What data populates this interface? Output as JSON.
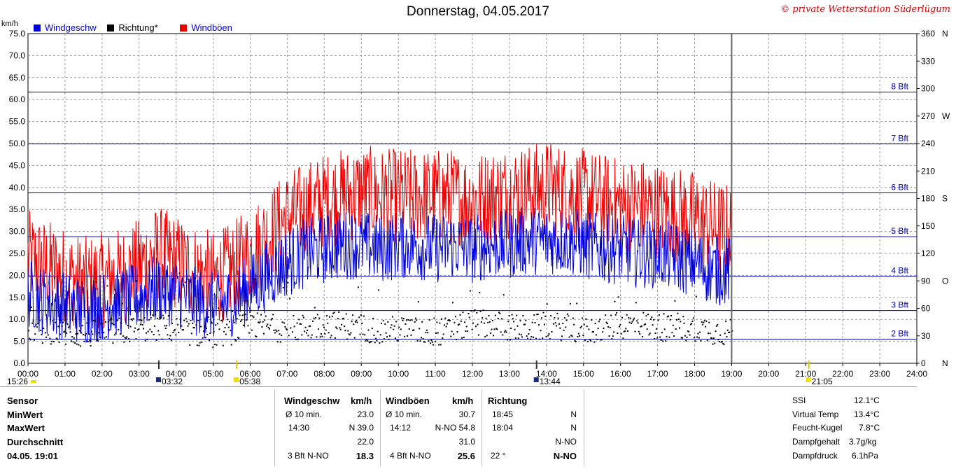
{
  "title": "Donnerstag, 04.05.2017",
  "copyright": "© private Wetterstation Süderlügum",
  "legend": {
    "wind": "Windgeschw",
    "dir": "Richtung*",
    "gust": "Windböen"
  },
  "colors": {
    "wind": "#0000dd",
    "gust": "#ee0000",
    "dir": "#000000",
    "bft": "#0000aa"
  },
  "chart_data": {
    "type": "line",
    "ylabel": "km/h",
    "ylim": [
      0,
      75
    ],
    "y2lim": [
      0,
      360
    ],
    "y_ticks": [
      "0.0",
      "5.0",
      "10.0",
      "15.0",
      "20.0",
      "25.0",
      "30.0",
      "35.0",
      "40.0",
      "45.0",
      "50.0",
      "55.0",
      "60.0",
      "65.0",
      "70.0",
      "75.0"
    ],
    "y2_ticks": [
      "0",
      "30",
      "60",
      "90",
      "120",
      "150",
      "180",
      "210",
      "240",
      "270",
      "300",
      "330",
      "360"
    ],
    "y2_directions": [
      {
        "deg": 0,
        "label": "N"
      },
      {
        "deg": 90,
        "label": "O"
      },
      {
        "deg": 180,
        "label": "S"
      },
      {
        "deg": 270,
        "label": "W"
      },
      {
        "deg": 360,
        "label": "N"
      }
    ],
    "x_ticks": [
      "00:00",
      "01:00",
      "02:00",
      "03:00",
      "04:00",
      "05:00",
      "06:00",
      "07:00",
      "08:00",
      "09:00",
      "10:00",
      "11:00",
      "12:00",
      "13:00",
      "14:00",
      "15:00",
      "16:00",
      "17:00",
      "18:00",
      "19:00",
      "20:00",
      "21:00",
      "22:00",
      "23:00",
      "24:00"
    ],
    "bft_lines": [
      {
        "label": "2 Bft",
        "value": 5.5
      },
      {
        "label": "3 Bft",
        "value": 12.0
      },
      {
        "label": "4 Bft",
        "value": 19.8
      },
      {
        "label": "5 Bft",
        "value": 28.8
      },
      {
        "label": "6 Bft",
        "value": 38.8
      },
      {
        "label": "7 Bft",
        "value": 49.9
      },
      {
        "label": "8 Bft",
        "value": 61.7
      }
    ],
    "data_end_hour": 19.0,
    "series": [
      {
        "name": "Windböen",
        "hours": [
          0,
          0.5,
          1,
          1.5,
          2,
          2.5,
          3,
          3.5,
          4,
          4.5,
          5,
          5.5,
          6,
          6.5,
          7,
          7.5,
          8,
          8.5,
          9,
          9.5,
          10,
          10.5,
          11,
          11.5,
          12,
          12.5,
          13,
          13.5,
          14,
          14.5,
          15,
          15.5,
          16,
          16.5,
          17,
          17.5,
          18,
          18.5,
          19
        ],
        "values": [
          24,
          22,
          20,
          18,
          19,
          20,
          22,
          25,
          23,
          21,
          19,
          21,
          25,
          29,
          33,
          35,
          37,
          38,
          39,
          38,
          38,
          38,
          38,
          38,
          37,
          38,
          39,
          39,
          40,
          39,
          38,
          37,
          36,
          36,
          35,
          34,
          33,
          31,
          30
        ]
      },
      {
        "name": "Windgeschw",
        "hours": [
          0,
          0.5,
          1,
          1.5,
          2,
          2.5,
          3,
          3.5,
          4,
          4.5,
          5,
          5.5,
          6,
          6.5,
          7,
          7.5,
          8,
          8.5,
          9,
          9.5,
          10,
          10.5,
          11,
          11.5,
          12,
          12.5,
          13,
          13.5,
          14,
          14.5,
          15,
          15.5,
          16,
          16.5,
          17,
          17.5,
          18,
          18.5,
          19
        ],
        "values": [
          16,
          14,
          13,
          12,
          13,
          14,
          15,
          17,
          16,
          14,
          13,
          14,
          17,
          20,
          23,
          25,
          26,
          27,
          27,
          26,
          27,
          27,
          26,
          27,
          26,
          27,
          27,
          28,
          28,
          28,
          27,
          26,
          26,
          25,
          25,
          24,
          23,
          21,
          21
        ]
      },
      {
        "name": "Richtung*",
        "unit": "deg",
        "hours": [
          0,
          0.5,
          1,
          1.5,
          2,
          2.5,
          3,
          3.5,
          4,
          4.5,
          5,
          5.5,
          6,
          6.5,
          7,
          7.5,
          8,
          8.5,
          9,
          9.5,
          10,
          10.5,
          11,
          11.5,
          12,
          12.5,
          13,
          13.5,
          14,
          14.5,
          15,
          15.5,
          16,
          16.5,
          17,
          17.5,
          18,
          18.5,
          19
        ],
        "values": [
          38,
          36,
          34,
          32,
          34,
          36,
          38,
          40,
          38,
          34,
          32,
          36,
          42,
          40,
          38,
          40,
          44,
          42,
          40,
          36,
          38,
          36,
          34,
          38,
          46,
          44,
          40,
          38,
          42,
          40,
          36,
          38,
          42,
          44,
          40,
          38,
          40,
          36,
          34
        ]
      }
    ]
  },
  "astro": {
    "left": "15:26",
    "moonrise": "03:32",
    "sunrise": "05:38",
    "moonset": "13:44",
    "sunset": "21:05"
  },
  "table": {
    "sensor": {
      "header": "Sensor",
      "min": "MinWert",
      "max": "MaxWert",
      "avg": "Durchschnitt",
      "time": "04.05. 19:01"
    },
    "wind": {
      "header": "Windgeschw",
      "unit": "km/h",
      "r1a": "Ø 10 min.",
      "r1b": "23.0",
      "r2a": "14:30",
      "r2b": "N 39.0",
      "r3b": "22.0",
      "r4a": "3 Bft N-NO",
      "r4b": "18.3"
    },
    "gust": {
      "header": "Windböen",
      "unit": "km/h",
      "r1a": "Ø 10 min.",
      "r1b": "30.7",
      "r2a": "14:12",
      "r2b": "N-NO 54.8",
      "r3b": "31.0",
      "r4a": "4 Bft N-NO",
      "r4b": "25.6"
    },
    "dir": {
      "header": "Richtung",
      "r1a": "18:45",
      "r1b": "N",
      "r2a": "18:04",
      "r2b": "N",
      "r3b": "N-NO",
      "r4a": "22 °",
      "r4b": "N-NO"
    },
    "extra": [
      {
        "label": "SSI",
        "value": "12.1°C"
      },
      {
        "label": "Virtual Temp",
        "value": "13.4°C"
      },
      {
        "label": "Feucht-Kugel",
        "value": "7.8°C"
      },
      {
        "label": "Dampfgehalt",
        "value": "3.7g/kg"
      },
      {
        "label": "Dampfdruck",
        "value": "6.1hPa"
      }
    ]
  }
}
